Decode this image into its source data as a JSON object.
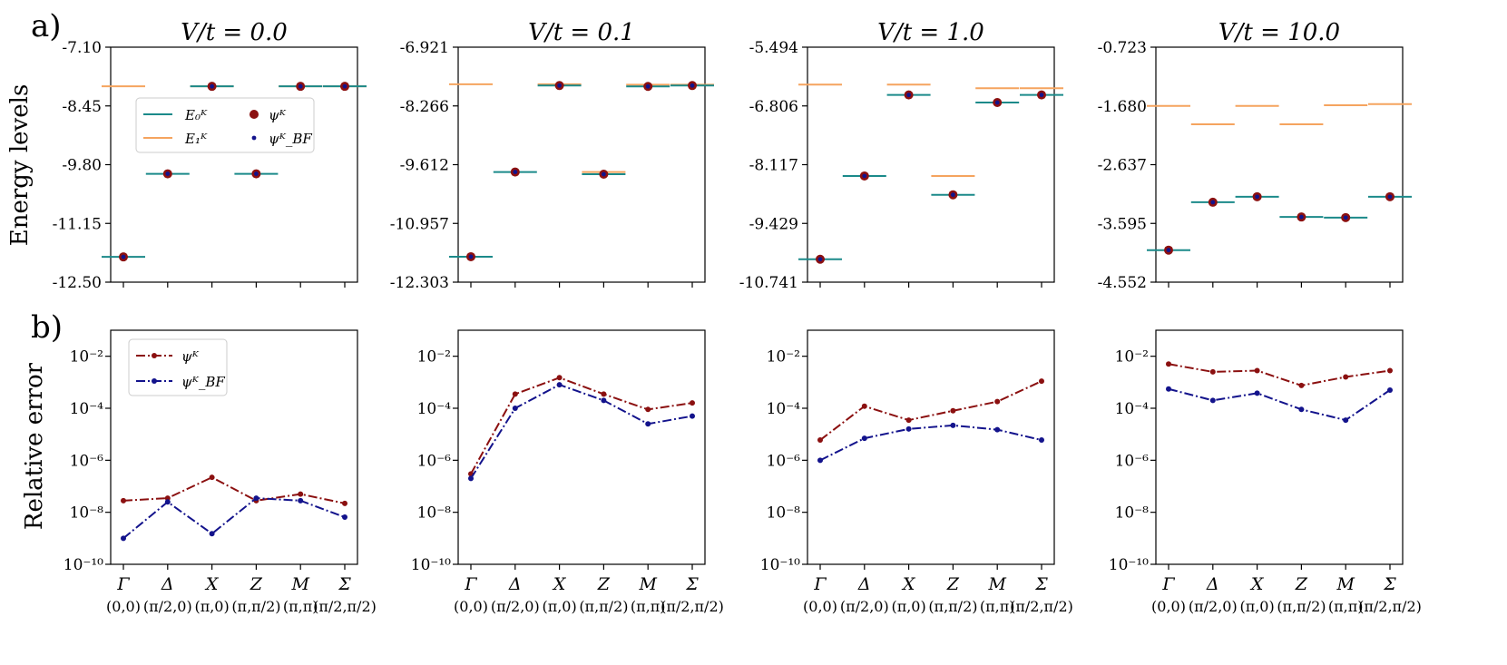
{
  "figure": {
    "panel_a_label": "a)",
    "panel_b_label": "b)",
    "ylabel_top": "Energy levels",
    "ylabel_bottom": "Relative error",
    "k_points": [
      "Γ",
      "Δ",
      "X",
      "Z",
      "M",
      "Σ"
    ],
    "k_coords": [
      "(0,0)",
      "(π/2,0)",
      "(π,0)",
      "(π,π/2)",
      "(π,π)",
      "(π/2,π/2)"
    ],
    "legend_top": [
      "E₀ᴷ",
      "E₁ᴷ",
      "ψᴷ",
      "ψᴷ_BF"
    ],
    "legend_bottom": [
      "ψᴷ",
      "ψᴷ_BF"
    ]
  },
  "colors": {
    "E0": "#1b8a8a",
    "E1": "#f5a45f",
    "psi": "#8b1010",
    "psi_bf": "#13138c",
    "axis": "#000000"
  },
  "chart_data": [
    {
      "type": "line",
      "title": "V/t = 0.0",
      "categories": [
        "Γ",
        "Δ",
        "X",
        "Z",
        "M",
        "Σ"
      ],
      "energy": {
        "ylim": [
          -12.5,
          -7.1
        ],
        "yticks": [
          "-7.10",
          "-8.45",
          "-9.80",
          "-11.15",
          "-12.50"
        ],
        "E0": [
          -11.92,
          -10.01,
          -8.0,
          -10.01,
          -8.0,
          -8.0
        ],
        "E1": [
          -8.0,
          null,
          -8.0,
          null,
          -8.0,
          -8.0
        ],
        "psi": [
          -11.92,
          -10.01,
          -8.0,
          -10.01,
          -8.0,
          -8.0
        ],
        "psi_bf": [
          -11.92,
          -10.01,
          -8.0,
          -10.01,
          -8.0,
          -8.0
        ]
      },
      "error": {
        "ylim": [
          1e-10,
          0.1
        ],
        "yticks": [
          "10⁻²",
          "10⁻⁴",
          "10⁻⁶",
          "10⁻⁸",
          "10⁻¹⁰"
        ],
        "psi": [
          2.8e-08,
          3.5e-08,
          2.2e-07,
          2.8e-08,
          5e-08,
          2.2e-08
        ],
        "psi_bf": [
          1e-09,
          2.5e-08,
          1.5e-09,
          3.5e-08,
          2.8e-08,
          6.5e-09
        ]
      }
    },
    {
      "type": "line",
      "title": "V/t = 0.1",
      "categories": [
        "Γ",
        "Δ",
        "X",
        "Z",
        "M",
        "Σ"
      ],
      "energy": {
        "ylim": [
          -12.303,
          -6.921
        ],
        "yticks": [
          "-6.921",
          "-8.266",
          "-9.612",
          "-10.957",
          "-12.303"
        ],
        "E0": [
          -11.72,
          -9.78,
          -7.8,
          -9.83,
          -7.82,
          -7.8
        ],
        "E1": [
          -7.77,
          null,
          -7.77,
          -9.78,
          -7.78,
          -7.78
        ],
        "psi": [
          -11.72,
          -9.78,
          -7.8,
          -9.83,
          -7.82,
          -7.8
        ],
        "psi_bf": [
          -11.72,
          -9.78,
          -7.8,
          -9.83,
          -7.82,
          -7.8
        ]
      },
      "error": {
        "ylim": [
          1e-10,
          0.1
        ],
        "yticks": [
          "10⁻²",
          "10⁻⁴",
          "10⁻⁶",
          "10⁻⁸",
          "10⁻¹⁰"
        ],
        "psi": [
          3e-07,
          0.00035,
          0.0015,
          0.00035,
          9e-05,
          0.00016
        ],
        "psi_bf": [
          2e-07,
          0.0001,
          0.0008,
          0.0002,
          2.5e-05,
          5e-05
        ]
      }
    },
    {
      "type": "line",
      "title": "V/t = 1.0",
      "categories": [
        "Γ",
        "Δ",
        "X",
        "Z",
        "M",
        "Σ"
      ],
      "energy": {
        "ylim": [
          -10.741,
          -5.494
        ],
        "yticks": [
          "-5.494",
          "-6.806",
          "-8.117",
          "-9.429",
          "-10.741"
        ],
        "E0": [
          -10.23,
          -8.37,
          -6.56,
          -8.79,
          -6.73,
          -6.56
        ],
        "E1": [
          -6.33,
          null,
          -6.33,
          -8.37,
          -6.41,
          -6.41
        ],
        "psi": [
          -10.23,
          -8.37,
          -6.56,
          -8.79,
          -6.73,
          -6.56
        ],
        "psi_bf": [
          -10.23,
          -8.37,
          -6.56,
          -8.79,
          -6.73,
          -6.56
        ]
      },
      "error": {
        "ylim": [
          1e-10,
          0.1
        ],
        "yticks": [
          "10⁻²",
          "10⁻⁴",
          "10⁻⁶",
          "10⁻⁸",
          "10⁻¹⁰"
        ],
        "psi": [
          6e-06,
          0.00012,
          3.5e-05,
          8e-05,
          0.00018,
          0.0011
        ],
        "psi_bf": [
          1e-06,
          7e-06,
          1.6e-05,
          2.2e-05,
          1.5e-05,
          6e-06
        ]
      }
    },
    {
      "type": "line",
      "title": "V/t = 10.0",
      "categories": [
        "Γ",
        "Δ",
        "X",
        "Z",
        "M",
        "Σ"
      ],
      "energy": {
        "ylim": [
          -4.552,
          -0.723
        ],
        "yticks": [
          "-0.723",
          "-1.680",
          "-2.637",
          "-3.595",
          "-4.552"
        ],
        "E0": [
          -4.03,
          -3.25,
          -3.16,
          -3.49,
          -3.5,
          -3.16
        ],
        "E1": [
          -1.68,
          -1.98,
          -1.68,
          -1.98,
          -1.67,
          -1.65
        ],
        "psi": [
          -4.03,
          -3.25,
          -3.16,
          -3.49,
          -3.5,
          -3.16
        ],
        "psi_bf": [
          -4.03,
          -3.25,
          -3.16,
          -3.49,
          -3.5,
          -3.16
        ]
      },
      "error": {
        "ylim": [
          1e-10,
          0.1
        ],
        "yticks": [
          "10⁻²",
          "10⁻⁴",
          "10⁻⁶",
          "10⁻⁸",
          "10⁻¹⁰"
        ],
        "psi": [
          0.005,
          0.0025,
          0.0028,
          0.00075,
          0.0016,
          0.0028
        ],
        "psi_bf": [
          0.00055,
          0.0002,
          0.00038,
          9e-05,
          3.5e-05,
          0.0005
        ]
      }
    }
  ]
}
